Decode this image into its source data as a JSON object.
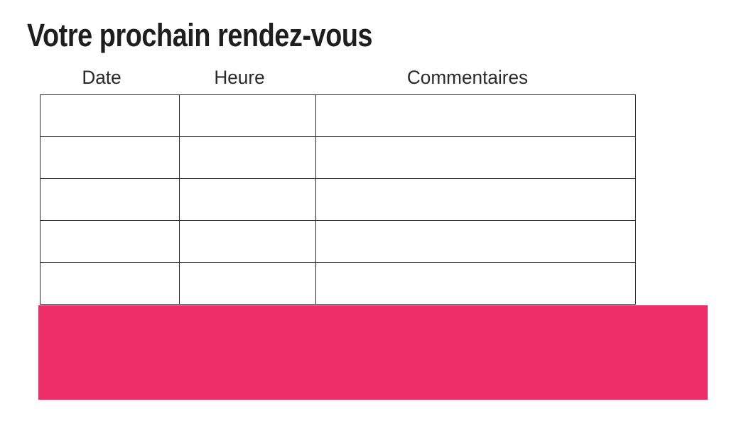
{
  "title": "Votre prochain rendez-vous",
  "table": {
    "headers": [
      "Date",
      "Heure",
      "Commentaires"
    ],
    "rows": [
      [
        "",
        "",
        ""
      ],
      [
        "",
        "",
        ""
      ],
      [
        "",
        "",
        ""
      ],
      [
        "",
        "",
        ""
      ],
      [
        "",
        "",
        ""
      ]
    ]
  },
  "banner": {
    "color": "#ed2e67"
  },
  "colors": {
    "text": "#1e1e1e",
    "table_border": "#2b2b2b",
    "background": "#ffffff",
    "accent_pink": "#ed2e67"
  }
}
